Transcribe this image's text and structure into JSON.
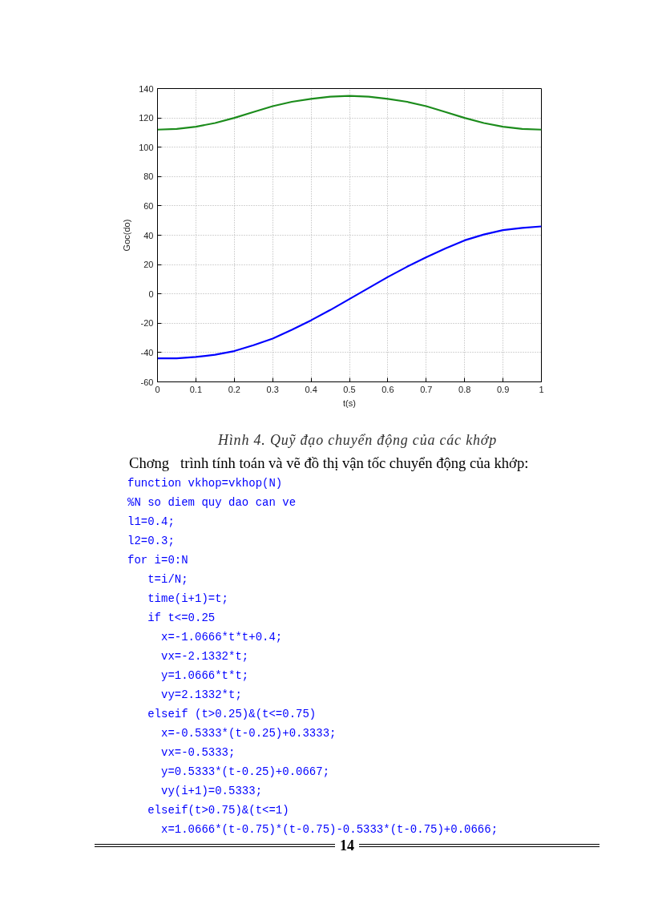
{
  "chart_data": {
    "type": "line",
    "title": "Hình 4. Quỹ đạo chuyển động của các khớp",
    "xlabel": "t(s)",
    "ylabel": "Goc(do)",
    "x": [
      0,
      0.05,
      0.1,
      0.15,
      0.2,
      0.25,
      0.3,
      0.35,
      0.4,
      0.45,
      0.5,
      0.55,
      0.6,
      0.65,
      0.7,
      0.75,
      0.8,
      0.85,
      0.9,
      0.95,
      1
    ],
    "series": [
      {
        "color": "#1c8c1c",
        "values": [
          112,
          112.5,
          114,
          116.5,
          120,
          124,
          128,
          131,
          133,
          134.5,
          135,
          134.5,
          133,
          131,
          128,
          124,
          120,
          116.5,
          114,
          112.5,
          112
        ]
      },
      {
        "color": "#0000ff",
        "values": [
          -44,
          -44,
          -43,
          -41.5,
          -39,
          -35,
          -30.5,
          -24.5,
          -18,
          -11,
          -3.5,
          4,
          11.5,
          18.5,
          25,
          31,
          36.5,
          40.5,
          43.5,
          45,
          46
        ]
      }
    ],
    "xlim": [
      0,
      1
    ],
    "ylim": [
      -60,
      140
    ],
    "xticks": [
      0,
      0.1,
      0.2,
      0.3,
      0.4,
      0.5,
      0.6,
      0.7,
      0.8,
      0.9,
      1
    ],
    "yticks": [
      -60,
      -40,
      -20,
      0,
      20,
      40,
      60,
      80,
      100,
      120,
      140
    ],
    "grid": true,
    "line_style": "solid",
    "annotations": [
      "Chơng   trình tính toán và vẽ đồ thị vận tốc chuyển động của khớp:",
      "function vkhop=vkhop(N)",
      "%N so diem quy dao can ve",
      "l1=0.4;",
      "l2=0.3;",
      "for i=0:N",
      "   t=i/N;",
      "   time(i+1)=t;",
      "   if t<=0.25",
      "     x=-1.0666*t*t+0.4;",
      "     vx=-2.1332*t;",
      "     y=1.0666*t*t;",
      "     vy=2.1332*t;",
      "   elseif (t>0.25)&(t<=0.75)",
      "     x=-0.5333*(t-0.25)+0.3333;",
      "     vx=-0.5333;",
      "     y=0.5333*(t-0.25)+0.0667;",
      "     vy(i+1)=0.5333;",
      "   elseif(t>0.75)&(t<=1)",
      "     x=1.0666*(t-0.75)*(t-0.75)-0.5333*(t-0.75)+0.0666;",
      "14"
    ]
  }
}
